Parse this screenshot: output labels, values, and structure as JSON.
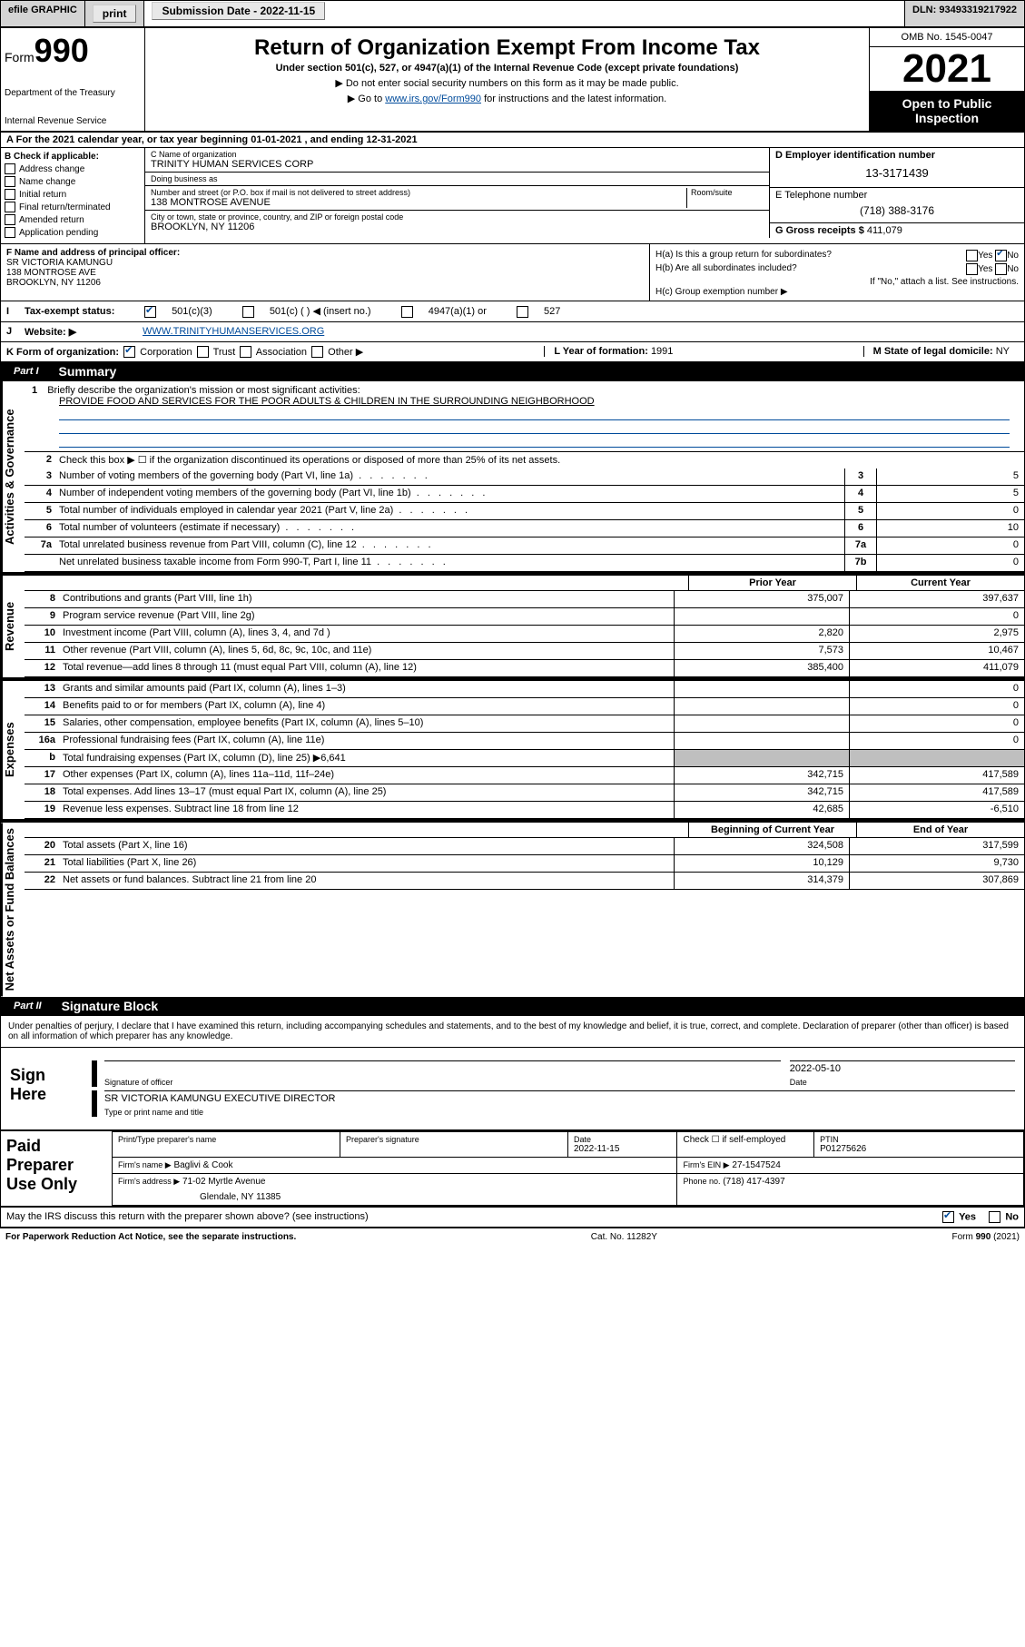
{
  "topBar": {
    "efile": "efile GRAPHIC",
    "print": "print",
    "submission": "Submission Date - 2022-11-15",
    "dln": "DLN: 93493319217922"
  },
  "header": {
    "formWord": "Form",
    "formNum": "990",
    "dept": "Department of the Treasury",
    "irs": "Internal Revenue Service",
    "title": "Return of Organization Exempt From Income Tax",
    "sub1": "Under section 501(c), 527, or 4947(a)(1) of the Internal Revenue Code (except private foundations)",
    "sub2": "▶ Do not enter social security numbers on this form as it may be made public.",
    "sub3_pre": "▶ Go to ",
    "sub3_link": "www.irs.gov/Form990",
    "sub3_post": " for instructions and the latest information.",
    "omb": "OMB No. 1545-0047",
    "year": "2021",
    "open": "Open to Public Inspection"
  },
  "taxYear": {
    "line": "For the 2021 calendar year, or tax year beginning 01-01-2021   , and ending 12-31-2021"
  },
  "boxB": {
    "label": "B Check if applicable:",
    "items": [
      "Address change",
      "Name change",
      "Initial return",
      "Final return/terminated",
      "Amended return",
      "Application pending"
    ]
  },
  "boxC": {
    "nameLabel": "C Name of organization",
    "orgName": "TRINITY HUMAN SERVICES CORP",
    "dbaLabel": "Doing business as",
    "dba": "",
    "addrLabel": "Number and street (or P.O. box if mail is not delivered to street address)",
    "roomLabel": "Room/suite",
    "street": "138 MONTROSE AVENUE",
    "cityLabel": "City or town, state or province, country, and ZIP or foreign postal code",
    "city": "BROOKLYN, NY  11206"
  },
  "boxD": {
    "label": "D Employer identification number",
    "ein": "13-3171439"
  },
  "boxE": {
    "label": "E Telephone number",
    "phone": "(718) 388-3176"
  },
  "boxG": {
    "label": "G Gross receipts $",
    "amount": "411,079"
  },
  "boxF": {
    "label": "F Name and address of principal officer:",
    "name": "SR VICTORIA KAMUNGU",
    "addr1": "138 MONTROSE AVE",
    "addr2": "BROOKLYN, NY  11206"
  },
  "boxH": {
    "a_label": "H(a)  Is this a group return for subordinates?",
    "a_yes": "Yes",
    "a_no": "No",
    "b_label": "H(b)  Are all subordinates included?",
    "b_yes": "Yes",
    "b_no": "No",
    "b_note": "If \"No,\" attach a list. See instructions.",
    "c_label": "H(c)  Group exemption number ▶"
  },
  "boxI": {
    "label": "Tax-exempt status:",
    "opts": [
      "501(c)(3)",
      "501(c) (  ) ◀ (insert no.)",
      "4947(a)(1) or",
      "527"
    ]
  },
  "boxJ": {
    "label": "Website: ▶",
    "url": "WWW.TRINITYHUMANSERVICES.ORG"
  },
  "boxK": {
    "label": "K Form of organization:",
    "opts": [
      "Corporation",
      "Trust",
      "Association",
      "Other ▶"
    ]
  },
  "boxL": {
    "label": "L Year of formation:",
    "val": "1991"
  },
  "boxM": {
    "label": "M State of legal domicile:",
    "val": "NY"
  },
  "partI": {
    "label": "Part I",
    "title": "Summary"
  },
  "partII": {
    "label": "Part II",
    "title": "Signature Block"
  },
  "sideLabels": {
    "gov": "Activities & Governance",
    "rev": "Revenue",
    "exp": "Expenses",
    "net": "Net Assets or Fund Balances"
  },
  "summary": {
    "line1_label": "Briefly describe the organization's mission or most significant activities:",
    "line1": "1",
    "mission": "PROVIDE FOOD AND SERVICES FOR THE POOR ADULTS & CHILDREN IN THE SURROUNDING NEIGHBORHOOD",
    "line2": "2",
    "line2_text": "Check this box ▶ ☐  if the organization discontinued its operations or disposed of more than 25% of its net assets."
  },
  "govLines": [
    {
      "n": "3",
      "text": "Number of voting members of the governing body (Part VI, line 1a)",
      "cell": "3",
      "val": "5"
    },
    {
      "n": "4",
      "text": "Number of independent voting members of the governing body (Part VI, line 1b)",
      "cell": "4",
      "val": "5"
    },
    {
      "n": "5",
      "text": "Total number of individuals employed in calendar year 2021 (Part V, line 2a)",
      "cell": "5",
      "val": "0"
    },
    {
      "n": "6",
      "text": "Total number of volunteers (estimate if necessary)",
      "cell": "6",
      "val": "10"
    },
    {
      "n": "7a",
      "text": "Total unrelated business revenue from Part VIII, column (C), line 12",
      "cell": "7a",
      "val": "0"
    },
    {
      "n": "",
      "text": "Net unrelated business taxable income from Form 990-T, Part I, line 11",
      "cell": "7b",
      "val": "0"
    }
  ],
  "twoColHeaders": {
    "prior": "Prior Year",
    "curr": "Current Year",
    "begin": "Beginning of Current Year",
    "end": "End of Year"
  },
  "revLines": [
    {
      "n": "8",
      "text": "Contributions and grants (Part VIII, line 1h)",
      "prior": "375,007",
      "curr": "397,637"
    },
    {
      "n": "9",
      "text": "Program service revenue (Part VIII, line 2g)",
      "prior": "",
      "curr": "0"
    },
    {
      "n": "10",
      "text": "Investment income (Part VIII, column (A), lines 3, 4, and 7d )",
      "prior": "2,820",
      "curr": "2,975"
    },
    {
      "n": "11",
      "text": "Other revenue (Part VIII, column (A), lines 5, 6d, 8c, 9c, 10c, and 11e)",
      "prior": "7,573",
      "curr": "10,467"
    },
    {
      "n": "12",
      "text": "Total revenue—add lines 8 through 11 (must equal Part VIII, column (A), line 12)",
      "prior": "385,400",
      "curr": "411,079"
    }
  ],
  "expLines": [
    {
      "n": "13",
      "text": "Grants and similar amounts paid (Part IX, column (A), lines 1–3)",
      "prior": "",
      "curr": "0"
    },
    {
      "n": "14",
      "text": "Benefits paid to or for members (Part IX, column (A), line 4)",
      "prior": "",
      "curr": "0"
    },
    {
      "n": "15",
      "text": "Salaries, other compensation, employee benefits (Part IX, column (A), lines 5–10)",
      "prior": "",
      "curr": "0"
    },
    {
      "n": "16a",
      "text": "Professional fundraising fees (Part IX, column (A), line 11e)",
      "prior": "",
      "curr": "0"
    },
    {
      "n": "b",
      "text": "Total fundraising expenses (Part IX, column (D), line 25) ▶6,641",
      "prior": "grey",
      "curr": "grey"
    },
    {
      "n": "17",
      "text": "Other expenses (Part IX, column (A), lines 11a–11d, 11f–24e)",
      "prior": "342,715",
      "curr": "417,589"
    },
    {
      "n": "18",
      "text": "Total expenses. Add lines 13–17 (must equal Part IX, column (A), line 25)",
      "prior": "342,715",
      "curr": "417,589"
    },
    {
      "n": "19",
      "text": "Revenue less expenses. Subtract line 18 from line 12",
      "prior": "42,685",
      "curr": "-6,510"
    }
  ],
  "netLines": [
    {
      "n": "20",
      "text": "Total assets (Part X, line 16)",
      "prior": "324,508",
      "curr": "317,599"
    },
    {
      "n": "21",
      "text": "Total liabilities (Part X, line 26)",
      "prior": "10,129",
      "curr": "9,730"
    },
    {
      "n": "22",
      "text": "Net assets or fund balances. Subtract line 21 from line 20",
      "prior": "314,379",
      "curr": "307,869"
    }
  ],
  "sigBlock": {
    "declaration": "Under penalties of perjury, I declare that I have examined this return, including accompanying schedules and statements, and to the best of my knowledge and belief, it is true, correct, and complete. Declaration of preparer (other than officer) is based on all information of which preparer has any knowledge.",
    "signHere": "Sign Here",
    "sigOfficer": "Signature of officer",
    "date": "Date",
    "sigDate": "2022-05-10",
    "nameTitle": "SR VICTORIA KAMUNGU  EXECUTIVE DIRECTOR",
    "nameTitleLabel": "Type or print name and title"
  },
  "preparer": {
    "label": "Paid Preparer Use Only",
    "printName": "Print/Type preparer's name",
    "prepSig": "Preparer's signature",
    "dateLabel": "Date",
    "date": "2022-11-15",
    "checkLabel": "Check ☐ if self-employed",
    "ptinLabel": "PTIN",
    "ptin": "P01275626",
    "firmNameLabel": "Firm's name    ▶",
    "firmName": "Baglivi & Cook",
    "firmEinLabel": "Firm's EIN ▶",
    "firmEin": "27-1547524",
    "firmAddrLabel": "Firm's address ▶",
    "firmAddr": "71-02 Myrtle Avenue",
    "firmCity": "Glendale, NY  11385",
    "phoneLabel": "Phone no.",
    "phone": "(718) 417-4397"
  },
  "discuss": {
    "text": "May the IRS discuss this return with the preparer shown above? (see instructions)",
    "yes": "Yes",
    "no": "No"
  },
  "footer": {
    "paperwork": "For Paperwork Reduction Act Notice, see the separate instructions.",
    "cat": "Cat. No. 11282Y",
    "form": "Form 990 (2021)"
  }
}
